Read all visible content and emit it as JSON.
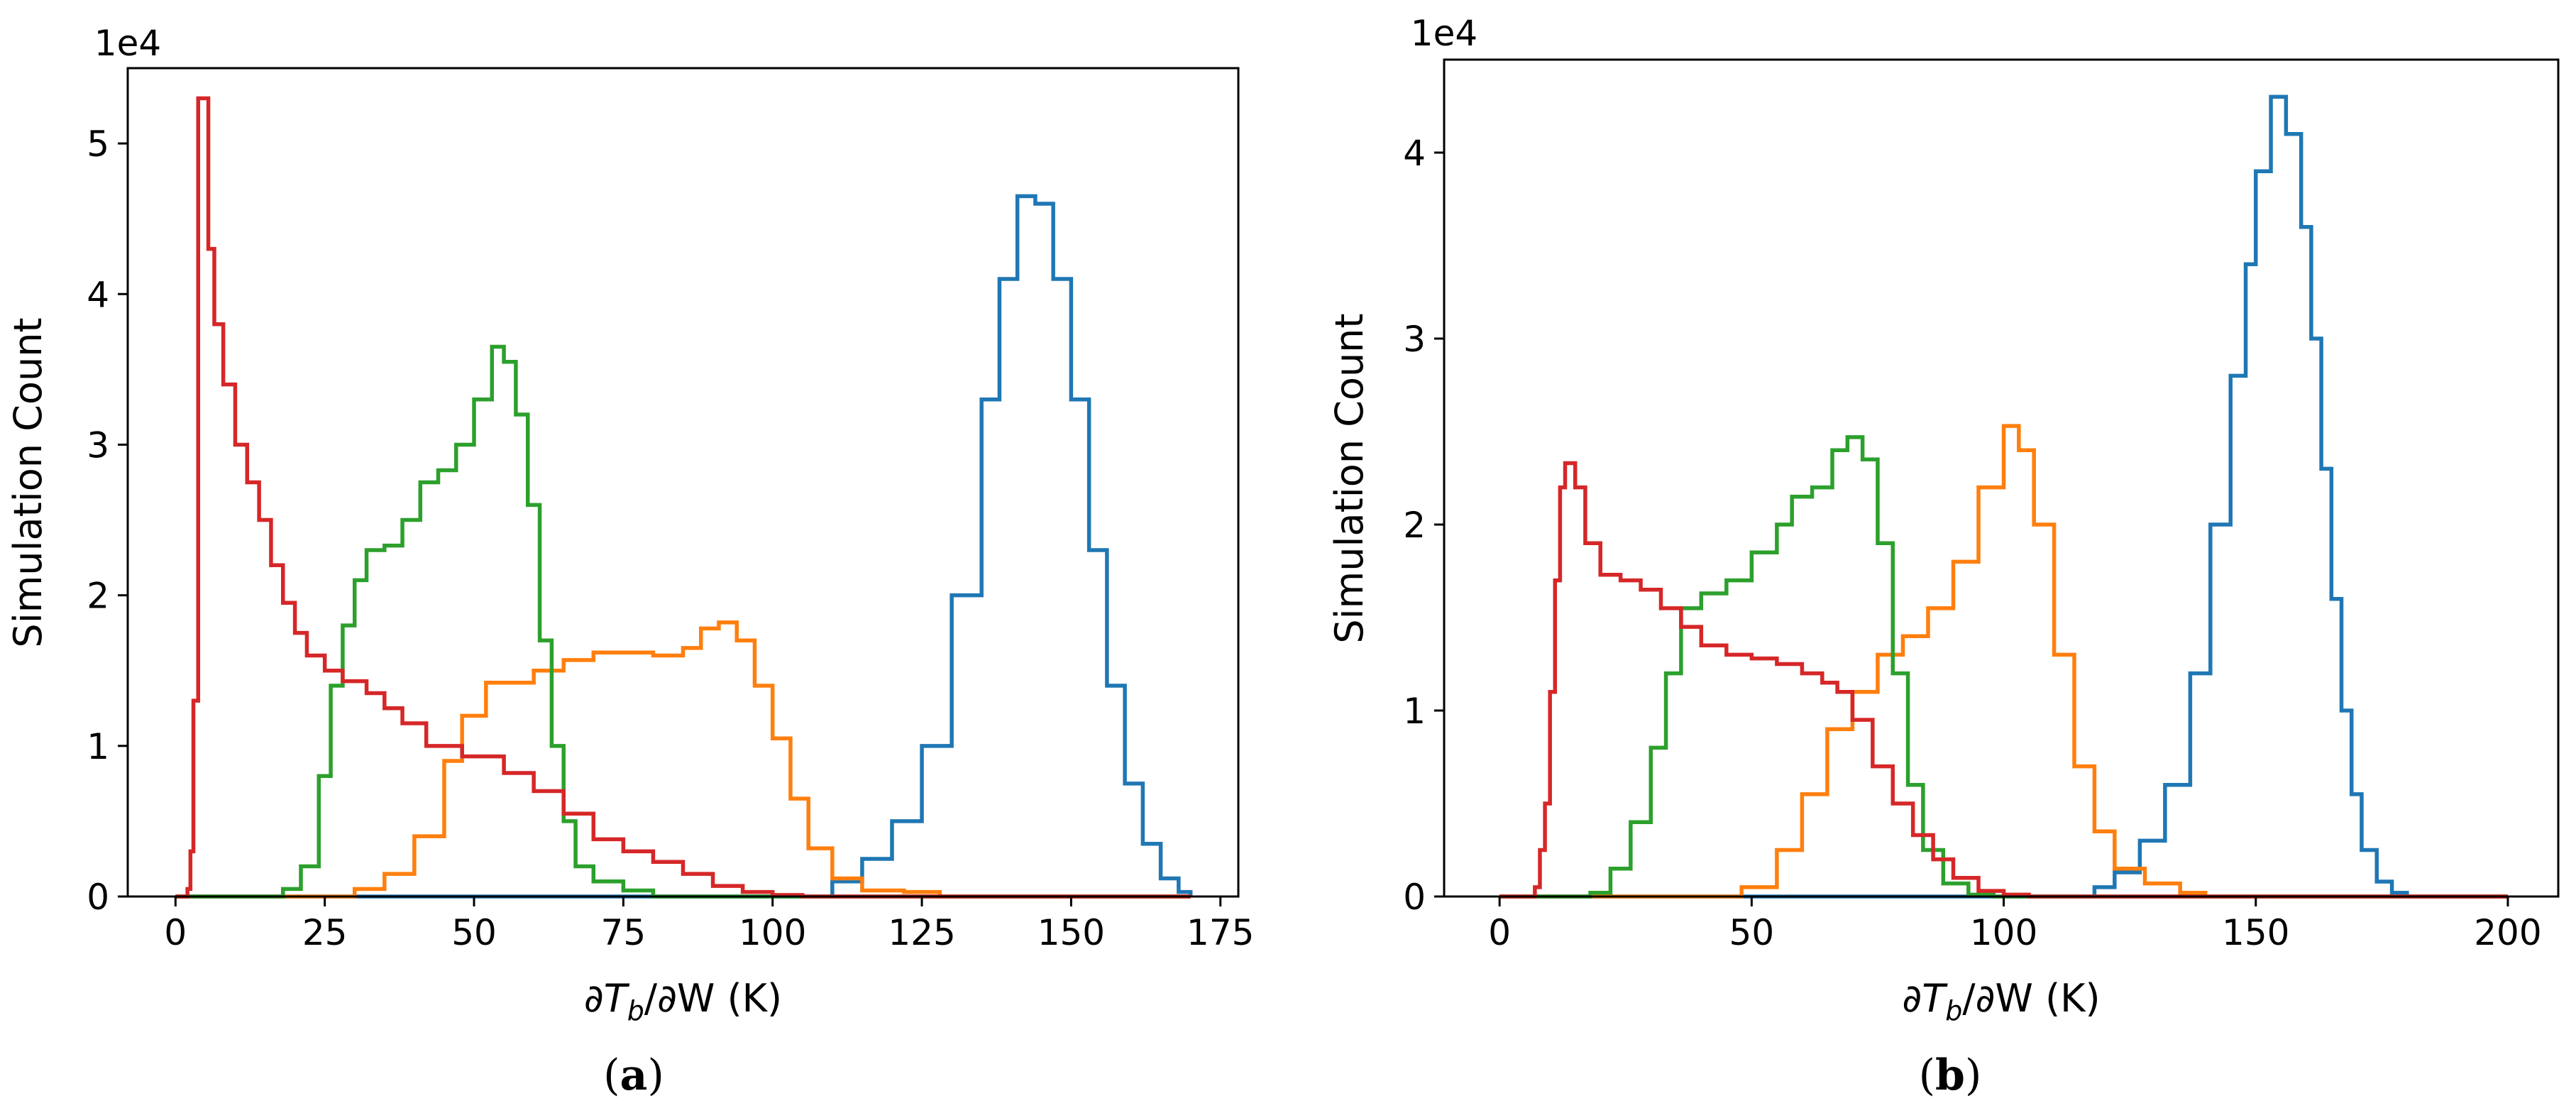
{
  "chart_data": [
    {
      "type": "histogram",
      "panel_label": {
        "open": "(",
        "letter": "a",
        "close": ")"
      },
      "multiplier": "1e4",
      "ylabel": "Simulation Count",
      "xlabel": {
        "prefix": "∂T",
        "sub": "b",
        "suffix": "/∂W (K)"
      },
      "xlim": [
        -8,
        178
      ],
      "ylim": [
        0,
        55000
      ],
      "xticks": [
        {
          "value": 0,
          "label": "0"
        },
        {
          "value": 25,
          "label": "25"
        },
        {
          "value": 50,
          "label": "50"
        },
        {
          "value": 75,
          "label": "75"
        },
        {
          "value": 100,
          "label": "100"
        },
        {
          "value": 125,
          "label": "125"
        },
        {
          "value": 150,
          "label": "150"
        },
        {
          "value": 175,
          "label": "175"
        }
      ],
      "yticks": [
        {
          "value": 0,
          "label": "0"
        },
        {
          "value": 10000,
          "label": "1"
        },
        {
          "value": 20000,
          "label": "2"
        },
        {
          "value": 30000,
          "label": "3"
        },
        {
          "value": 40000,
          "label": "4"
        },
        {
          "value": 50000,
          "label": "5"
        }
      ],
      "series": [
        {
          "name": "blue",
          "color": "#1f77b4",
          "points": [
            [
              0,
              0
            ],
            [
              100,
              0
            ],
            [
              110,
              1000
            ],
            [
              115,
              2500
            ],
            [
              120,
              5000
            ],
            [
              125,
              10000
            ],
            [
              130,
              20000
            ],
            [
              135,
              33000
            ],
            [
              138,
              41000
            ],
            [
              141,
              46500
            ],
            [
              144,
              46000
            ],
            [
              147,
              41000
            ],
            [
              150,
              33000
            ],
            [
              153,
              23000
            ],
            [
              156,
              14000
            ],
            [
              159,
              7500
            ],
            [
              162,
              3500
            ],
            [
              165,
              1200
            ],
            [
              168,
              300
            ],
            [
              170,
              0
            ]
          ]
        },
        {
          "name": "orange",
          "color": "#ff7f0e",
          "points": [
            [
              0,
              0
            ],
            [
              25,
              0
            ],
            [
              30,
              500
            ],
            [
              35,
              1500
            ],
            [
              40,
              4000
            ],
            [
              45,
              9000
            ],
            [
              48,
              12000
            ],
            [
              52,
              14200
            ],
            [
              55,
              14200
            ],
            [
              60,
              15000
            ],
            [
              65,
              15700
            ],
            [
              70,
              16200
            ],
            [
              75,
              16200
            ],
            [
              80,
              16000
            ],
            [
              85,
              16500
            ],
            [
              88,
              17800
            ],
            [
              91,
              18200
            ],
            [
              94,
              17000
            ],
            [
              97,
              14000
            ],
            [
              100,
              10500
            ],
            [
              103,
              6500
            ],
            [
              106,
              3200
            ],
            [
              110,
              1200
            ],
            [
              115,
              400
            ],
            [
              122,
              300
            ],
            [
              128,
              0
            ],
            [
              170,
              0
            ]
          ]
        },
        {
          "name": "green",
          "color": "#2ca02c",
          "points": [
            [
              0,
              0
            ],
            [
              15,
              0
            ],
            [
              18,
              500
            ],
            [
              21,
              2000
            ],
            [
              24,
              8000
            ],
            [
              26,
              14000
            ],
            [
              28,
              18000
            ],
            [
              30,
              21000
            ],
            [
              32,
              23000
            ],
            [
              35,
              23300
            ],
            [
              38,
              25000
            ],
            [
              41,
              27500
            ],
            [
              44,
              28300
            ],
            [
              47,
              30000
            ],
            [
              50,
              33000
            ],
            [
              53,
              36500
            ],
            [
              55,
              35500
            ],
            [
              57,
              32000
            ],
            [
              59,
              26000
            ],
            [
              61,
              17000
            ],
            [
              63,
              10000
            ],
            [
              65,
              5000
            ],
            [
              67,
              2000
            ],
            [
              70,
              1000
            ],
            [
              75,
              400
            ],
            [
              80,
              0
            ],
            [
              170,
              0
            ]
          ]
        },
        {
          "name": "red",
          "color": "#d62728",
          "points": [
            [
              0,
              0
            ],
            [
              1.5,
              0
            ],
            [
              2,
              500
            ],
            [
              2.5,
              3000
            ],
            [
              3,
              13000
            ],
            [
              3.8,
              53000
            ],
            [
              5,
              53000
            ],
            [
              5.5,
              43000
            ],
            [
              6.5,
              38000
            ],
            [
              8,
              34000
            ],
            [
              10,
              30000
            ],
            [
              12,
              27500
            ],
            [
              14,
              25000
            ],
            [
              16,
              22000
            ],
            [
              18,
              19500
            ],
            [
              20,
              17500
            ],
            [
              22,
              16000
            ],
            [
              25,
              15000
            ],
            [
              28,
              14300
            ],
            [
              32,
              13500
            ],
            [
              35,
              12500
            ],
            [
              38,
              11500
            ],
            [
              42,
              10000
            ],
            [
              48,
              9300
            ],
            [
              55,
              8200
            ],
            [
              60,
              7000
            ],
            [
              65,
              5500
            ],
            [
              70,
              3800
            ],
            [
              75,
              3000
            ],
            [
              80,
              2300
            ],
            [
              85,
              1500
            ],
            [
              90,
              700
            ],
            [
              95,
              300
            ],
            [
              100,
              100
            ],
            [
              105,
              0
            ],
            [
              170,
              0
            ]
          ]
        }
      ]
    },
    {
      "type": "histogram",
      "panel_label": {
        "open": "(",
        "letter": "b",
        "close": ")"
      },
      "multiplier": "1e4",
      "ylabel": "Simulation Count",
      "xlabel": {
        "prefix": "∂T",
        "sub": "b",
        "suffix": "/∂W (K)"
      },
      "xlim": [
        -11,
        210
      ],
      "ylim": [
        0,
        45000
      ],
      "xticks": [
        {
          "value": 0,
          "label": "0"
        },
        {
          "value": 50,
          "label": "50"
        },
        {
          "value": 100,
          "label": "100"
        },
        {
          "value": 150,
          "label": "150"
        },
        {
          "value": 200,
          "label": "200"
        }
      ],
      "yticks": [
        {
          "value": 0,
          "label": "0"
        },
        {
          "value": 10000,
          "label": "1"
        },
        {
          "value": 20000,
          "label": "2"
        },
        {
          "value": 30000,
          "label": "3"
        },
        {
          "value": 40000,
          "label": "4"
        }
      ],
      "series": [
        {
          "name": "blue",
          "color": "#1f77b4",
          "points": [
            [
              0,
              0
            ],
            [
              110,
              0
            ],
            [
              118,
              500
            ],
            [
              122,
              1300
            ],
            [
              127,
              3000
            ],
            [
              132,
              6000
            ],
            [
              137,
              12000
            ],
            [
              141,
              20000
            ],
            [
              145,
              28000
            ],
            [
              148,
              34000
            ],
            [
              150,
              39000
            ],
            [
              153,
              43000
            ],
            [
              156,
              41000
            ],
            [
              159,
              36000
            ],
            [
              161,
              30000
            ],
            [
              163,
              23000
            ],
            [
              165,
              16000
            ],
            [
              167,
              10000
            ],
            [
              169,
              5500
            ],
            [
              171,
              2500
            ],
            [
              174,
              800
            ],
            [
              177,
              200
            ],
            [
              180,
              0
            ],
            [
              200,
              0
            ]
          ]
        },
        {
          "name": "orange",
          "color": "#ff7f0e",
          "points": [
            [
              0,
              0
            ],
            [
              40,
              0
            ],
            [
              48,
              500
            ],
            [
              55,
              2500
            ],
            [
              60,
              5500
            ],
            [
              65,
              9000
            ],
            [
              70,
              11000
            ],
            [
              75,
              13000
            ],
            [
              80,
              14000
            ],
            [
              85,
              15500
            ],
            [
              90,
              18000
            ],
            [
              95,
              22000
            ],
            [
              100,
              25300
            ],
            [
              103,
              24000
            ],
            [
              106,
              20000
            ],
            [
              110,
              13000
            ],
            [
              114,
              7000
            ],
            [
              118,
              3500
            ],
            [
              122,
              1500
            ],
            [
              128,
              700
            ],
            [
              135,
              200
            ],
            [
              140,
              0
            ],
            [
              200,
              0
            ]
          ]
        },
        {
          "name": "green",
          "color": "#2ca02c",
          "points": [
            [
              0,
              0
            ],
            [
              14,
              0
            ],
            [
              18,
              200
            ],
            [
              22,
              1500
            ],
            [
              26,
              4000
            ],
            [
              30,
              8000
            ],
            [
              33,
              12000
            ],
            [
              36,
              15500
            ],
            [
              40,
              16300
            ],
            [
              45,
              17000
            ],
            [
              50,
              18500
            ],
            [
              55,
              20000
            ],
            [
              58,
              21500
            ],
            [
              62,
              22000
            ],
            [
              66,
              24000
            ],
            [
              69,
              24700
            ],
            [
              72,
              23500
            ],
            [
              75,
              19000
            ],
            [
              78,
              12000
            ],
            [
              81,
              6000
            ],
            [
              84,
              2500
            ],
            [
              88,
              700
            ],
            [
              93,
              100
            ],
            [
              98,
              0
            ],
            [
              200,
              0
            ]
          ]
        },
        {
          "name": "red",
          "color": "#d62728",
          "points": [
            [
              0,
              0
            ],
            [
              5,
              0
            ],
            [
              7,
              500
            ],
            [
              8,
              2500
            ],
            [
              9,
              5000
            ],
            [
              10,
              11000
            ],
            [
              11,
              17000
            ],
            [
              12,
              22000
            ],
            [
              13,
              23300
            ],
            [
              15,
              22000
            ],
            [
              17,
              19000
            ],
            [
              20,
              17300
            ],
            [
              24,
              17000
            ],
            [
              28,
              16500
            ],
            [
              32,
              15500
            ],
            [
              36,
              14500
            ],
            [
              40,
              13500
            ],
            [
              45,
              13000
            ],
            [
              50,
              12800
            ],
            [
              55,
              12500
            ],
            [
              60,
              12000
            ],
            [
              64,
              11500
            ],
            [
              67,
              11000
            ],
            [
              70,
              9500
            ],
            [
              74,
              7000
            ],
            [
              78,
              5000
            ],
            [
              82,
              3300
            ],
            [
              86,
              2000
            ],
            [
              90,
              1000
            ],
            [
              95,
              300
            ],
            [
              100,
              100
            ],
            [
              105,
              0
            ],
            [
              200,
              0
            ]
          ]
        }
      ]
    }
  ]
}
